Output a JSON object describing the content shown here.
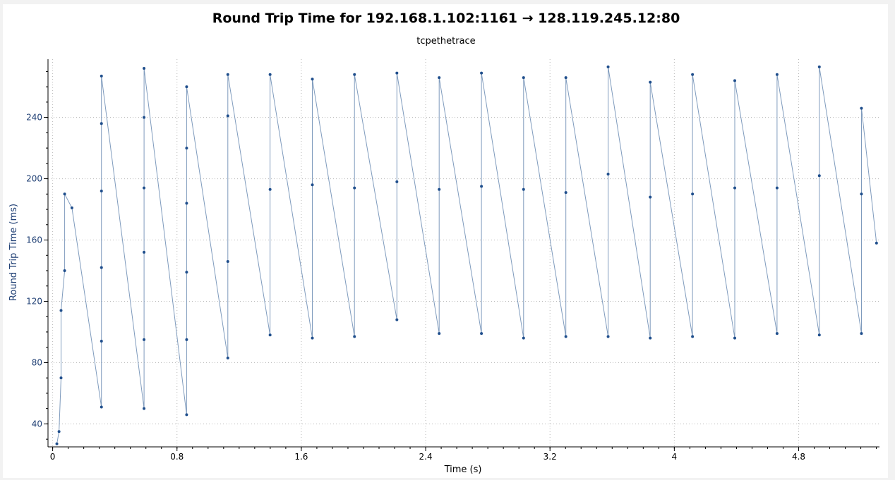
{
  "window": {
    "title": "Round Trip Time for 192.168.1.102:1161 → 128.119.245.12:80",
    "subtitle": "tcpethetrace"
  },
  "colors": {
    "series_line": "#7f9bbd",
    "series_point": "#1f4e8c",
    "axis_text": "#1f3f74",
    "grid": "#b8b8b8"
  },
  "chart_data": {
    "type": "scatter",
    "title": "Round Trip Time for 192.168.1.102:1161 → 128.119.245.12:80",
    "subtitle": "tcpethetrace",
    "xlabel": "Time (s)",
    "ylabel": "Round Trip Time (ms)",
    "xlim": [
      -0.03,
      5.32
    ],
    "ylim": [
      25,
      278
    ],
    "xticks": [
      0,
      0.8,
      1.6,
      2.4,
      3.2,
      4,
      4.8
    ],
    "xtick_labels": [
      "0",
      "0.8",
      "1.6",
      "2.4",
      "3.2",
      "4",
      "4.8"
    ],
    "yticks": [
      40,
      80,
      120,
      160,
      200,
      240
    ],
    "ytick_labels": [
      "40",
      "80",
      "120",
      "160",
      "200",
      "240"
    ],
    "grid": true,
    "connect_points": true,
    "series": [
      {
        "x": [
          0.027,
          0.041,
          0.054,
          0.054,
          0.077,
          0.077,
          0.124,
          0.314,
          0.314,
          0.314,
          0.314,
          0.314,
          0.314,
          0.588,
          0.588,
          0.588,
          0.588,
          0.588,
          0.588,
          0.862,
          0.862,
          0.862,
          0.862,
          0.862,
          0.862,
          1.127,
          1.127,
          1.127,
          1.127,
          1.399,
          1.399,
          1.399,
          1.671,
          1.671,
          1.671,
          1.942,
          1.942,
          1.942,
          2.215,
          2.215,
          2.215,
          2.487,
          2.487,
          2.487,
          2.759,
          2.759,
          2.759,
          3.03,
          3.03,
          3.03,
          3.302,
          3.302,
          3.302,
          3.574,
          3.574,
          3.574,
          3.845,
          3.845,
          3.845,
          4.117,
          4.117,
          4.117,
          4.389,
          4.389,
          4.389,
          4.661,
          4.661,
          4.661,
          4.933,
          4.933,
          4.933,
          5.204,
          5.204,
          5.204,
          5.301
        ],
        "y": [
          27,
          35,
          70,
          114,
          140,
          190,
          181,
          51,
          94,
          142,
          192,
          236,
          267,
          50,
          95,
          152,
          194,
          240,
          272,
          46,
          95,
          139,
          184,
          220,
          260,
          83,
          146,
          241,
          268,
          98,
          193,
          268,
          96,
          196,
          265,
          97,
          194,
          268,
          108,
          198,
          269,
          99,
          193,
          266,
          99,
          195,
          269,
          96,
          193,
          266,
          97,
          191,
          266,
          97,
          203,
          273,
          96,
          188,
          263,
          97,
          190,
          268,
          96,
          194,
          264,
          99,
          194,
          268,
          98,
          202,
          273,
          99,
          190,
          246,
          158
        ]
      }
    ]
  }
}
